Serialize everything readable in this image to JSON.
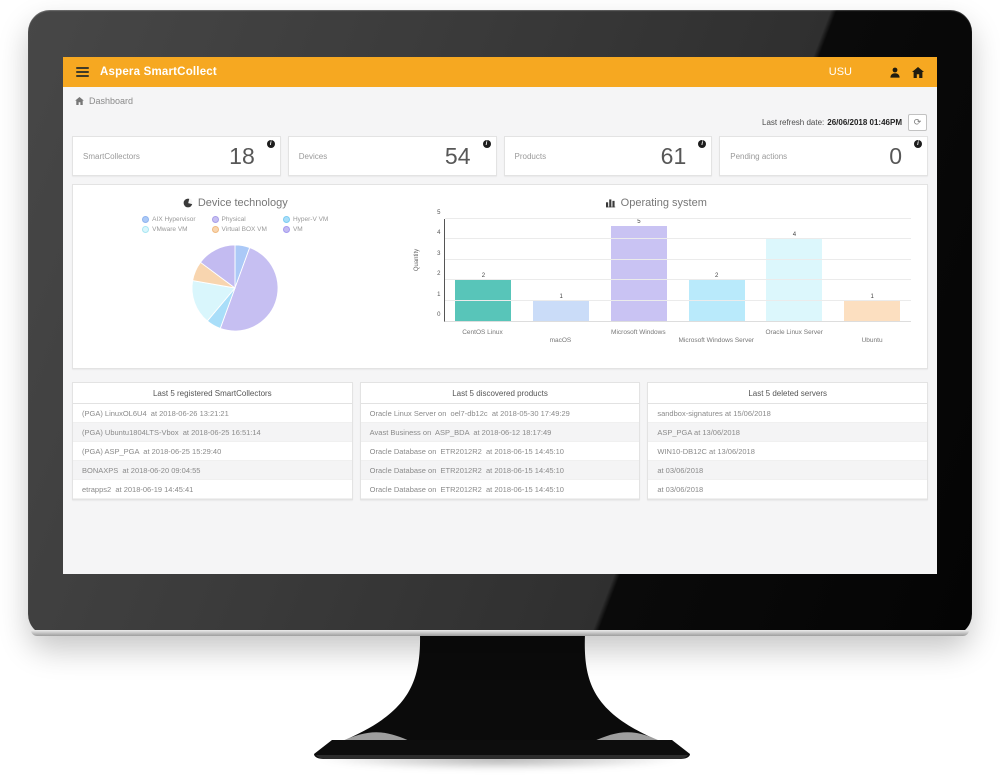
{
  "header": {
    "title": "Aspera SmartCollect",
    "user_label": "USU"
  },
  "breadcrumb": {
    "label": "Dashboard"
  },
  "refresh": {
    "label": "Last refresh date:",
    "date": "26/06/2018 01:46PM",
    "icon_glyph": "⟳"
  },
  "stats": [
    {
      "label": "SmartCollectors",
      "value": "18"
    },
    {
      "label": "Devices",
      "value": "54"
    },
    {
      "label": "Products",
      "value": "61"
    },
    {
      "label": "Pending actions",
      "value": "0"
    }
  ],
  "chart_data": [
    {
      "type": "pie",
      "title": "Device technology",
      "labels": [
        "AIX Hypervisor",
        "Physical",
        "Hyper-V VM",
        "VMware VM",
        "Virtual BOX VM",
        "VM"
      ],
      "values": [
        3,
        27,
        3,
        9,
        4,
        8
      ],
      "colors": [
        "#abc9f7",
        "#c6bff2",
        "#a9def9",
        "#d9f6fc",
        "#f8d5af",
        "#c3bbf1"
      ],
      "border_colors": [
        "#8fb4ef",
        "#a99fe8",
        "#7ccdf2",
        "#a9e6f2",
        "#f0ba80",
        "#a49af0"
      ],
      "legend_position": "top"
    },
    {
      "type": "bar",
      "title": "Operating system",
      "categories": [
        "CentOS Linux",
        "macOS",
        "Microsoft Windows",
        "Microsoft Windows Server",
        "Oracle Linux Server",
        "Ubuntu"
      ],
      "values": [
        2,
        1,
        5,
        2,
        4,
        1
      ],
      "colors": [
        "#58c5b9",
        "#cadcf8",
        "#c9c3f3",
        "#b9eafb",
        "#dcf7fc",
        "#fcdfc0"
      ],
      "xlabel": "",
      "ylabel": "Quantity",
      "ylim": [
        0,
        5
      ],
      "yticks": [
        0,
        1,
        2,
        3,
        4,
        5
      ],
      "grid": true,
      "legend_position": "none"
    }
  ],
  "panels": [
    {
      "title": "Last 5 registered SmartCollectors",
      "items": [
        "(PGA) LinuxOL6U4  at 2018-06-26 13:21:21",
        "(PGA) Ubuntu1804LTS-Vbox  at 2018-06-25 16:51:14",
        "(PGA) ASP_PGA  at 2018-06-25 15:29:40",
        "BONAXPS  at 2018-06-20 09:04:55",
        "etrapps2  at 2018-06-19 14:45:41"
      ]
    },
    {
      "title": "Last 5 discovered products",
      "items": [
        "Oracle Linux Server on  oel7-db12c  at 2018-05-30 17:49:29",
        "Avast Business on  ASP_BDA  at 2018-06-12 18:17:49",
        "Oracle Database on  ETR2012R2  at 2018-06-15 14:45:10",
        "Oracle Database on  ETR2012R2  at 2018-06-15 14:45:10",
        "Oracle Database on  ETR2012R2  at 2018-06-15 14:45:10"
      ]
    },
    {
      "title": "Last 5 deleted servers",
      "items": [
        "sandbox-signatures at 15/06/2018",
        "ASP_PGA at 13/06/2018",
        "WIN10-DB12C at 13/06/2018",
        "at 03/06/2018",
        "at 03/06/2018"
      ]
    }
  ],
  "colors": {
    "accent_orange": "#f6a821",
    "page_background": "#f5f5f6",
    "bezel_dark": "#0a0a0a",
    "bezel_gray": "#3f3f3f"
  },
  "icons": {
    "menu": "hamburger-lines",
    "user": "person-silhouette",
    "home": "house",
    "info": "i-circle",
    "refresh": "circular-arrow",
    "device_technology": "pie-chart",
    "operating_system": "bar-chart"
  }
}
